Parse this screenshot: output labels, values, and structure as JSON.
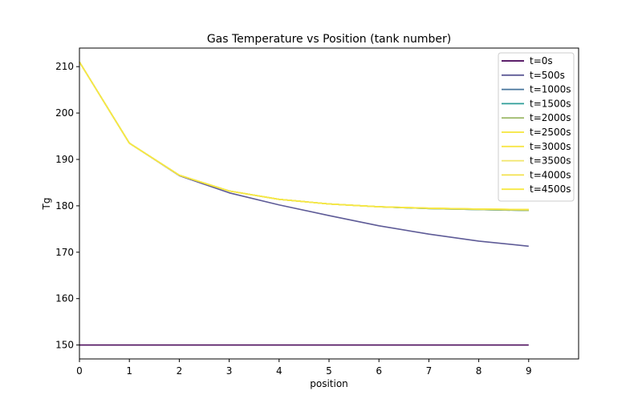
{
  "chart_data": {
    "type": "line",
    "title": "Gas Temperature vs Position (tank number)",
    "xlabel": "position",
    "ylabel": "Tg",
    "xlim": [
      0,
      10
    ],
    "ylim": [
      147,
      214
    ],
    "xticks": [
      0,
      1,
      2,
      3,
      4,
      5,
      6,
      7,
      8,
      9
    ],
    "yticks": [
      150,
      160,
      170,
      180,
      190,
      200,
      210
    ],
    "grid": false,
    "legend_position": "upper right",
    "x": [
      0,
      1,
      2,
      3,
      4,
      5,
      6,
      7,
      8,
      9
    ],
    "series": [
      {
        "name": "t=0s",
        "color": "#440154",
        "values": [
          150,
          150,
          150,
          150,
          150,
          150,
          150,
          150,
          150,
          150
        ]
      },
      {
        "name": "t=500s",
        "color": "#5e5b97",
        "values": [
          211,
          193.5,
          186.5,
          182.8,
          180.2,
          177.9,
          175.7,
          173.9,
          172.4,
          171.3
        ]
      },
      {
        "name": "t=1000s",
        "color": "#47759c",
        "values": [
          211,
          193.5,
          186.6,
          183.2,
          181.4,
          180.4,
          179.8,
          179.4,
          179.2,
          179.0
        ]
      },
      {
        "name": "t=1500s",
        "color": "#2e9e98",
        "values": [
          211,
          193.5,
          186.6,
          183.2,
          181.4,
          180.4,
          179.8,
          179.4,
          179.2,
          179.0
        ]
      },
      {
        "name": "t=2000s",
        "color": "#9fbb6d",
        "values": [
          211,
          193.5,
          186.6,
          183.2,
          181.4,
          180.4,
          179.8,
          179.4,
          179.2,
          179.0
        ]
      },
      {
        "name": "t=2500s",
        "color": "#f5e53a",
        "values": [
          211,
          193.5,
          186.6,
          183.2,
          181.4,
          180.4,
          179.8,
          179.5,
          179.3,
          179.2
        ]
      },
      {
        "name": "t=3000s",
        "color": "#f7e645",
        "values": [
          211,
          193.5,
          186.6,
          183.2,
          181.4,
          180.4,
          179.8,
          179.5,
          179.3,
          179.2
        ]
      },
      {
        "name": "t=3500s",
        "color": "#f1e66a",
        "values": [
          211,
          193.5,
          186.6,
          183.2,
          181.4,
          180.4,
          179.8,
          179.5,
          179.3,
          179.2
        ]
      },
      {
        "name": "t=4000s",
        "color": "#f3e14d",
        "values": [
          211,
          193.5,
          186.6,
          183.2,
          181.4,
          180.4,
          179.8,
          179.5,
          179.3,
          179.2
        ]
      },
      {
        "name": "t=4500s",
        "color": "#f7e843",
        "values": [
          211,
          193.5,
          186.6,
          183.2,
          181.4,
          180.4,
          179.8,
          179.5,
          179.3,
          179.2
        ]
      }
    ]
  }
}
